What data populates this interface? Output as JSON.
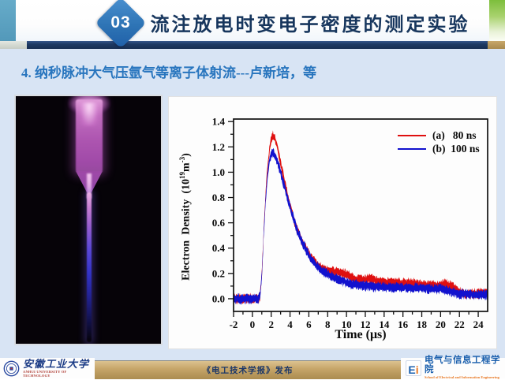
{
  "header": {
    "badge": "03",
    "title": "流注放电时变电子密度的测定实验"
  },
  "subtitle": "4. 纳秒脉冲大气压氩气等离子体射流---卢新培，等",
  "chart_data": {
    "type": "line",
    "title": "",
    "xlabel": "Time (μs)",
    "ylabel": "Electron Density (10^19 m^-3)",
    "ylabel_parts": {
      "pre": "Electron  Density  (10",
      "sup1": "19",
      "mid": "m",
      "sup2": "-3",
      "post": ")"
    },
    "xlim": [
      -2,
      25
    ],
    "ylim": [
      -0.1,
      1.42
    ],
    "x_ticks": [
      -2,
      0,
      2,
      4,
      6,
      8,
      10,
      12,
      14,
      16,
      18,
      20,
      22,
      24
    ],
    "y_ticks": [
      0.0,
      0.2,
      0.4,
      0.6,
      0.8,
      1.0,
      1.2,
      1.4
    ],
    "grid": false,
    "legend_position": "top-right",
    "legend": [
      {
        "label": "(a)   80 ns",
        "color": "#df1010"
      },
      {
        "label": "(b)  100 ns",
        "color": "#1212ce"
      }
    ],
    "series": [
      {
        "name": "(a) 80 ns",
        "color": "#df1010",
        "points": [
          [
            -2,
            0
          ],
          [
            0.6,
            0
          ],
          [
            0.8,
            0.02
          ],
          [
            1.0,
            0.18
          ],
          [
            1.2,
            0.52
          ],
          [
            1.4,
            0.82
          ],
          [
            1.6,
            1.02
          ],
          [
            1.8,
            1.17
          ],
          [
            2.0,
            1.26
          ],
          [
            2.2,
            1.29
          ],
          [
            2.4,
            1.27
          ],
          [
            2.7,
            1.18
          ],
          [
            3.0,
            1.07
          ],
          [
            3.4,
            0.93
          ],
          [
            3.8,
            0.8
          ],
          [
            4.2,
            0.68
          ],
          [
            4.6,
            0.58
          ],
          [
            5.0,
            0.5
          ],
          [
            5.5,
            0.42
          ],
          [
            6.0,
            0.35
          ],
          [
            6.5,
            0.3
          ],
          [
            7.0,
            0.26
          ],
          [
            7.5,
            0.235
          ],
          [
            8.0,
            0.22
          ],
          [
            8.5,
            0.215
          ],
          [
            9.0,
            0.21
          ],
          [
            9.5,
            0.2
          ],
          [
            10.0,
            0.19
          ],
          [
            10.5,
            0.17
          ],
          [
            11.0,
            0.155
          ],
          [
            11.5,
            0.15
          ],
          [
            12.0,
            0.15
          ],
          [
            12.5,
            0.155
          ],
          [
            13.0,
            0.145
          ],
          [
            13.5,
            0.135
          ],
          [
            14.0,
            0.13
          ],
          [
            15.0,
            0.13
          ],
          [
            16.0,
            0.125
          ],
          [
            17.0,
            0.12
          ],
          [
            18.0,
            0.115
          ],
          [
            19.0,
            0.105
          ],
          [
            19.5,
            0.1
          ],
          [
            20.0,
            0.11
          ],
          [
            20.5,
            0.115
          ],
          [
            21.0,
            0.1
          ],
          [
            21.5,
            0.08
          ],
          [
            22.0,
            0.06
          ],
          [
            22.5,
            0.045
          ],
          [
            23.0,
            0.04
          ],
          [
            23.5,
            0.04
          ],
          [
            24.0,
            0.045
          ],
          [
            25.0,
            0.05
          ]
        ]
      },
      {
        "name": "(b) 100 ns",
        "color": "#1212ce",
        "points": [
          [
            -2,
            0
          ],
          [
            0.6,
            0
          ],
          [
            0.8,
            0.02
          ],
          [
            1.0,
            0.17
          ],
          [
            1.2,
            0.5
          ],
          [
            1.4,
            0.78
          ],
          [
            1.6,
            0.97
          ],
          [
            1.8,
            1.09
          ],
          [
            2.0,
            1.14
          ],
          [
            2.2,
            1.15
          ],
          [
            2.5,
            1.12
          ],
          [
            2.8,
            1.05
          ],
          [
            3.1,
            0.97
          ],
          [
            3.5,
            0.86
          ],
          [
            3.9,
            0.75
          ],
          [
            4.3,
            0.65
          ],
          [
            4.7,
            0.56
          ],
          [
            5.1,
            0.48
          ],
          [
            5.6,
            0.4
          ],
          [
            6.1,
            0.33
          ],
          [
            6.6,
            0.28
          ],
          [
            7.1,
            0.24
          ],
          [
            7.6,
            0.21
          ],
          [
            8.1,
            0.19
          ],
          [
            8.6,
            0.17
          ],
          [
            9.1,
            0.155
          ],
          [
            9.6,
            0.14
          ],
          [
            10.1,
            0.125
          ],
          [
            10.6,
            0.115
          ],
          [
            11.1,
            0.11
          ],
          [
            12.0,
            0.105
          ],
          [
            12.6,
            0.1
          ],
          [
            13.0,
            0.095
          ],
          [
            14.0,
            0.095
          ],
          [
            15.0,
            0.09
          ],
          [
            16.0,
            0.09
          ],
          [
            17.0,
            0.085
          ],
          [
            18.0,
            0.085
          ],
          [
            19.0,
            0.08
          ],
          [
            20.0,
            0.08
          ],
          [
            20.6,
            0.07
          ],
          [
            21.0,
            0.06
          ],
          [
            21.6,
            0.045
          ],
          [
            22.0,
            0.04
          ],
          [
            23.0,
            0.035
          ],
          [
            24.0,
            0.03
          ],
          [
            25.0,
            0.035
          ]
        ]
      }
    ]
  },
  "footer": {
    "left": {
      "university_cn": "安徽工业大学",
      "university_en": "ANHUI UNIVERSITY OF TECHNOLOGY"
    },
    "center": {
      "publisher": "《电工技术学报》发布"
    },
    "right": {
      "logo_e": "E",
      "logo_i": "i",
      "school_cn": "电气与信息工程学院",
      "school_en": "School of Electrical and Information Engineering"
    }
  },
  "colors": {
    "accent_navy": "#1e3a64",
    "header_teal": "#5fa5c4",
    "header_green": "#7dbe3c",
    "footer_tan": "#b9985c",
    "title_text": "#17365d",
    "subtitle_text": "#2875be",
    "series_red": "#df1010",
    "series_blue": "#1212ce"
  }
}
